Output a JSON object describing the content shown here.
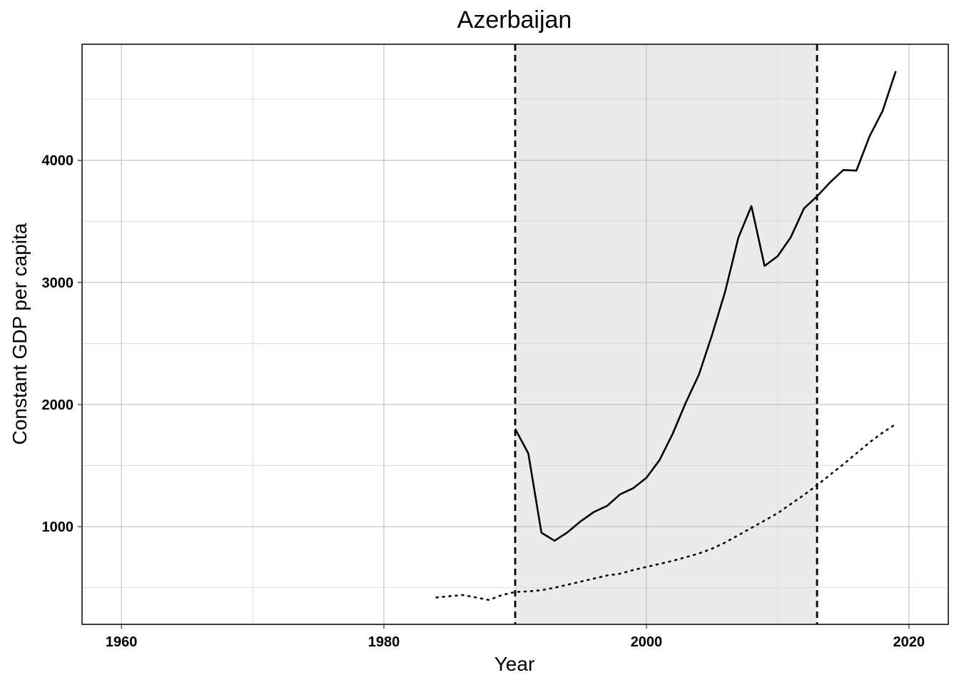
{
  "chart_data": {
    "type": "line",
    "title": "Azerbaijan",
    "xlabel": "Year",
    "ylabel": "Constant GDP per capita",
    "xlim": [
      1957,
      2023
    ],
    "ylim": [
      200,
      4950
    ],
    "x_ticks": [
      1960,
      1980,
      2000,
      2020
    ],
    "y_ticks": [
      1000,
      2000,
      3000,
      4000
    ],
    "x_minor_grid": [
      1970,
      1990,
      2010
    ],
    "y_minor_grid": [
      500,
      1500,
      2500,
      3500,
      4500
    ],
    "grid": true,
    "legend": "none",
    "shaded_period": [
      1990,
      2013
    ],
    "vlines": [
      1990,
      2013
    ],
    "series": [
      {
        "style": "solid",
        "x": [
          1990,
          1991,
          1992,
          1993,
          1994,
          1995,
          1996,
          1997,
          1998,
          1999,
          2000,
          2001,
          2002,
          2003,
          2004,
          2005,
          2006,
          2007,
          2008,
          2009,
          2010,
          2011,
          2012,
          2013,
          2014,
          2015,
          2016,
          2017,
          2018,
          2019
        ],
        "values": [
          1800,
          1600,
          950,
          885,
          955,
          1045,
          1120,
          1170,
          1265,
          1315,
          1400,
          1545,
          1760,
          2015,
          2245,
          2570,
          2925,
          3365,
          3625,
          3135,
          3215,
          3370,
          3605,
          3705,
          3820,
          3920,
          3915,
          4195,
          4405,
          4730
        ]
      },
      {
        "style": "dotted",
        "x": [
          1984,
          1985,
          1986,
          1987,
          1988,
          1989,
          1990,
          1991,
          1992,
          1993,
          1994,
          1995,
          1996,
          1997,
          1998,
          1999,
          2000,
          2001,
          2002,
          2003,
          2004,
          2005,
          2006,
          2007,
          2008,
          2009,
          2010,
          2011,
          2012,
          2013,
          2014,
          2015,
          2016,
          2017,
          2018,
          2019
        ],
        "values": [
          420,
          430,
          440,
          420,
          400,
          440,
          465,
          470,
          480,
          500,
          525,
          550,
          575,
          600,
          615,
          645,
          670,
          695,
          720,
          750,
          780,
          820,
          870,
          930,
          990,
          1050,
          1110,
          1185,
          1260,
          1340,
          1425,
          1510,
          1600,
          1690,
          1770,
          1840
        ]
      }
    ]
  }
}
